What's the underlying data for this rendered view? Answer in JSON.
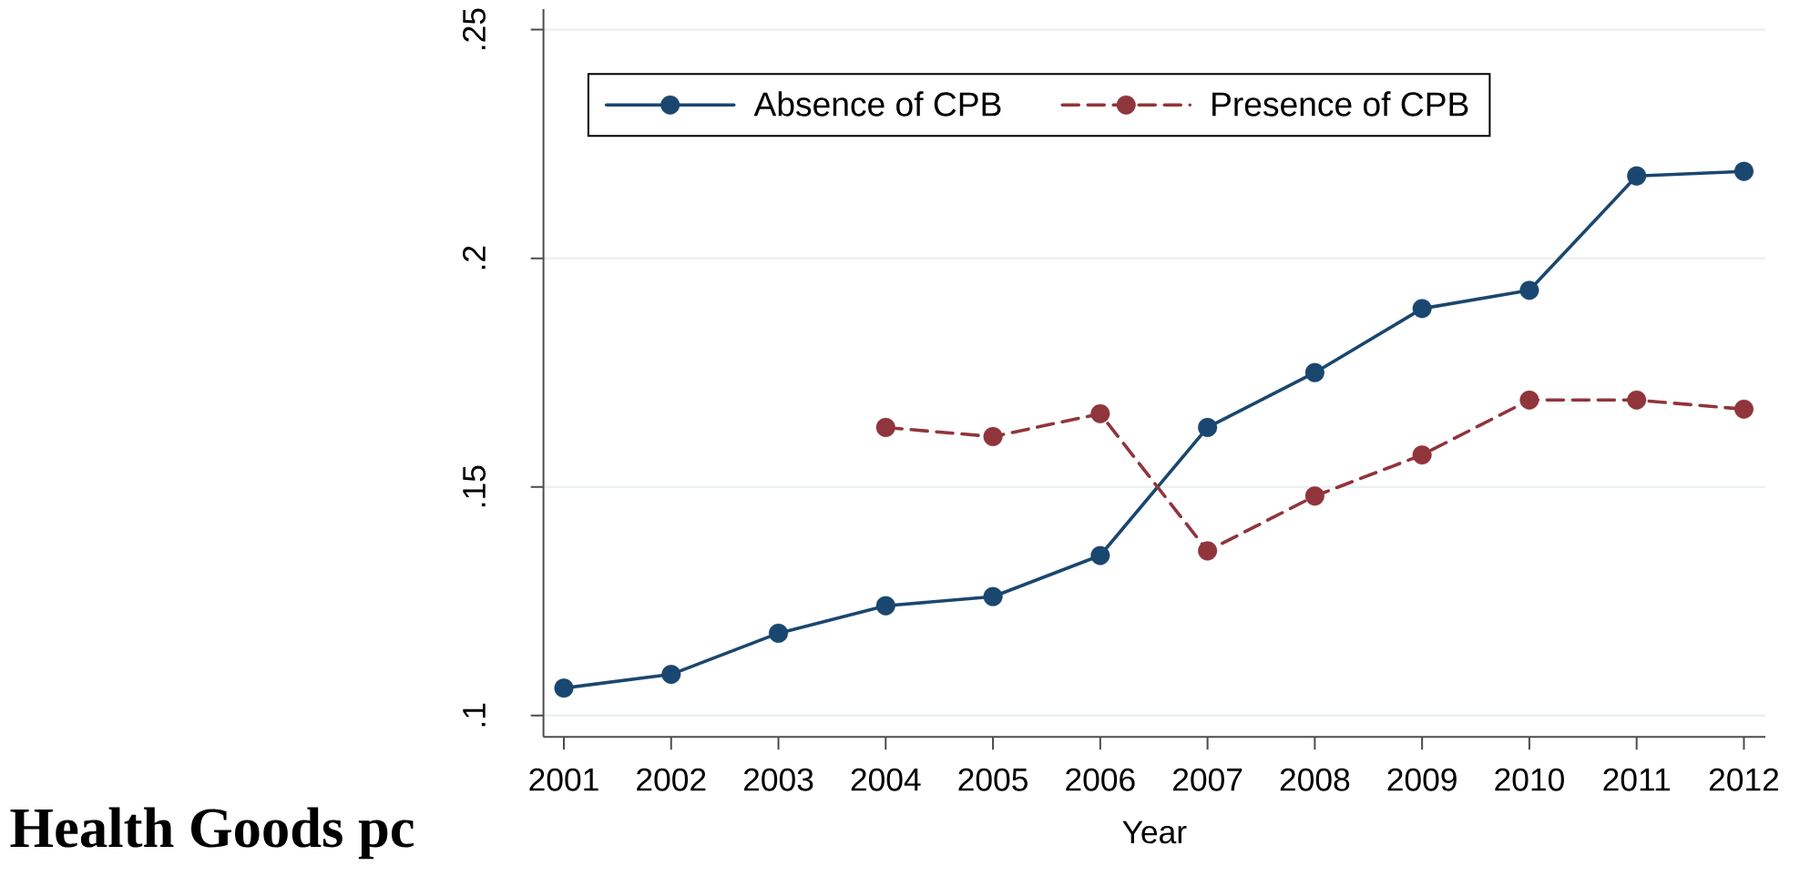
{
  "chart_data": {
    "type": "line",
    "title": "Health Goods pc",
    "xlabel": "Year",
    "x": [
      2001,
      2002,
      2003,
      2004,
      2005,
      2006,
      2007,
      2008,
      2009,
      2010,
      2011,
      2012
    ],
    "series": [
      {
        "name": "Absence of CPB",
        "color": "#1a476f",
        "line_style": "solid",
        "values": [
          0.106,
          0.109,
          0.118,
          0.124,
          0.126,
          0.135,
          0.163,
          0.175,
          0.189,
          0.193,
          0.218,
          0.219
        ]
      },
      {
        "name": "Presence of CPB",
        "color": "#90353b",
        "line_style": "dashed",
        "x": [
          2004,
          2005,
          2006,
          2007,
          2008,
          2009,
          2010,
          2011,
          2012
        ],
        "values": [
          0.163,
          0.161,
          0.166,
          0.136,
          0.148,
          0.157,
          0.169,
          0.169,
          0.167
        ]
      }
    ],
    "xlim": [
      2000.81,
      2012.2
    ],
    "ylim": [
      0.0953,
      0.2545
    ],
    "xticks": [
      2001,
      2002,
      2003,
      2004,
      2005,
      2006,
      2007,
      2008,
      2009,
      2010,
      2011,
      2012
    ],
    "yticks": [
      {
        "value": 0.1,
        "label": ".1"
      },
      {
        "value": 0.15,
        "label": ".15"
      },
      {
        "value": 0.2,
        "label": ".2"
      },
      {
        "value": 0.25,
        "label": ".25"
      }
    ],
    "grid": "y",
    "legend": "top left",
    "marker": "circle"
  }
}
